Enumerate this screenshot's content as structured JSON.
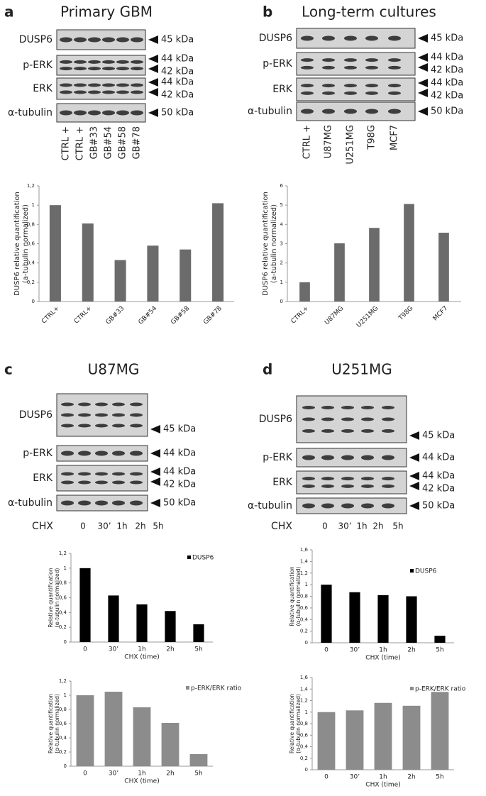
{
  "panels": [
    {
      "letter": "a",
      "title": "Primary GBM",
      "blots": [
        {
          "name": "DUSP6",
          "markers": [
            "45 kDa"
          ]
        },
        {
          "name": "p-ERK",
          "markers": [
            "44 kDa",
            "42 kDa"
          ]
        },
        {
          "name": "ERK",
          "markers": [
            "44 kDa",
            "42 kDa"
          ]
        },
        {
          "name": "α-tubulin",
          "markers": [
            "50 kDa"
          ]
        }
      ],
      "lanes": [
        "CTRL +",
        "CTRL +",
        "GB#33",
        "GB#54",
        "GB#58",
        "GB#78"
      ]
    },
    {
      "letter": "b",
      "title": "Long-term cultures",
      "blots": [
        {
          "name": "DUSP6",
          "markers": [
            "45 kDa"
          ]
        },
        {
          "name": "p-ERK",
          "markers": [
            "44 kDa",
            "42 kDa"
          ]
        },
        {
          "name": "ERK",
          "markers": [
            "44 kDa",
            "42 kDa"
          ]
        },
        {
          "name": "α-tubulin",
          "markers": [
            "50 kDa"
          ]
        }
      ],
      "lanes": [
        "CTRL +",
        "U87MG",
        "U251MG",
        "T98G",
        "MCF7"
      ]
    },
    {
      "letter": "c",
      "title": "U87MG",
      "blots": [
        {
          "name": "DUSP6",
          "markers": [
            "45 kDa"
          ]
        },
        {
          "name": "p-ERK",
          "markers": [
            "44 kDa"
          ]
        },
        {
          "name": "ERK",
          "markers": [
            "44 kDa",
            "42 kDa"
          ]
        },
        {
          "name": "α-tubulin",
          "markers": [
            "50 kDa"
          ]
        }
      ],
      "treatment": "CHX",
      "lanes": [
        "0",
        "30’",
        "1h",
        "2h",
        "5h"
      ]
    },
    {
      "letter": "d",
      "title": "U251MG",
      "blots": [
        {
          "name": "DUSP6",
          "markers": [
            "45 kDa"
          ]
        },
        {
          "name": "p-ERK",
          "markers": [
            "44 kDa"
          ]
        },
        {
          "name": "ERK",
          "markers": [
            "44 kDa",
            "42 kDa"
          ]
        },
        {
          "name": "α-tubulin",
          "markers": [
            "50 kDa"
          ]
        }
      ],
      "treatment": "CHX",
      "lanes": [
        "0",
        "30’",
        "1h",
        "2h",
        "5h"
      ]
    }
  ],
  "chart_data": [
    {
      "type": "bar",
      "y_label": [
        "DUSP6 relative quantification",
        "(a-tubulin normalized)"
      ],
      "categories": [
        "CTRL+",
        "CTRL+",
        "GB#33",
        "GB#54",
        "GB#58",
        "GB#78"
      ],
      "values": [
        1,
        0.81,
        0.43,
        0.58,
        0.54,
        1.02
      ],
      "color": "#6b6b6b",
      "ylim": [
        0,
        1.2
      ],
      "yticks": [
        0,
        {
          "value": 0.2,
          "label": "0,2"
        },
        {
          "value": 0.4,
          "label": "0,4"
        },
        {
          "value": 0.6,
          "label": "0,6"
        },
        {
          "value": 0.8,
          "label": "0,8"
        },
        1,
        {
          "value": 1.2,
          "label": "1,2"
        }
      ],
      "grid": false
    },
    {
      "type": "bar",
      "y_label": [
        "DUSP6 relative quantification",
        "(a-tubulin normalized)"
      ],
      "categories": [
        "CTRL+",
        "U87MG",
        "U251MG",
        "T98G",
        "MCF7"
      ],
      "values": [
        1,
        3.02,
        3.82,
        5.06,
        3.57
      ],
      "color": "#6b6b6b",
      "ylim": [
        0,
        6
      ],
      "yticks": [
        0,
        1,
        2,
        3,
        4,
        5,
        6
      ],
      "grid": false
    },
    {
      "type": "bar",
      "y_label": [
        "Relative quantification",
        "(α-tubulin normalized)"
      ],
      "x_label": "CHX (time)",
      "categories": [
        "0",
        "30’",
        "1h",
        "2h",
        "5h"
      ],
      "series": [
        {
          "name": "DUSP6",
          "color": "#000000",
          "values": [
            1,
            0.63,
            0.51,
            0.42,
            0.24
          ]
        }
      ],
      "ylim": [
        0,
        1.2
      ],
      "yticks": [
        0,
        {
          "value": 0.2,
          "label": "0,2"
        },
        {
          "value": 0.4,
          "label": "0,4"
        },
        {
          "value": 0.6,
          "label": "0,6"
        },
        {
          "value": 0.8,
          "label": "0,8"
        },
        1,
        {
          "value": 1.2,
          "label": "1,2"
        }
      ],
      "grid": false
    },
    {
      "type": "bar",
      "y_label": [
        "Relative quantification",
        "(α-tubulin normalized)"
      ],
      "x_label": "CHX (time)",
      "categories": [
        "0",
        "30’",
        "1h",
        "2h",
        "5h"
      ],
      "series": [
        {
          "name": "p-ERK/ERK ratio",
          "color": "#8c8c8c",
          "values": [
            1,
            1.05,
            0.83,
            0.61,
            0.17
          ]
        }
      ],
      "ylim": [
        0,
        1.2
      ],
      "yticks": [
        0,
        {
          "value": 0.2,
          "label": "0,2"
        },
        {
          "value": 0.4,
          "label": "0,4"
        },
        {
          "value": 0.6,
          "label": "0,6"
        },
        {
          "value": 0.8,
          "label": "0,8"
        },
        1,
        {
          "value": 1.2,
          "label": "1,2"
        }
      ],
      "grid": false
    },
    {
      "type": "bar",
      "y_label": [
        "Relative quantification",
        "(α-tubulin normalized)"
      ],
      "x_label": "CHX (time)",
      "categories": [
        "0",
        "30’",
        "1h",
        "2h",
        "5h"
      ],
      "series": [
        {
          "name": "DUSP6",
          "color": "#000000",
          "values": [
            1,
            0.87,
            0.82,
            0.8,
            0.12
          ]
        }
      ],
      "ylim": [
        0,
        1.6
      ],
      "yticks": [
        0,
        {
          "value": 0.2,
          "label": "0,2"
        },
        {
          "value": 0.4,
          "label": "0,4"
        },
        {
          "value": 0.6,
          "label": "0,6"
        },
        {
          "value": 0.8,
          "label": "0,8"
        },
        1,
        {
          "value": 1.2,
          "label": "1,2"
        },
        {
          "value": 1.4,
          "label": "1,4"
        },
        {
          "value": 1.6,
          "label": "1,6"
        }
      ],
      "grid": false
    },
    {
      "type": "bar",
      "y_label": [
        "Relative quantification",
        "(α-tubulin normalized)"
      ],
      "x_label": "CHX (time)",
      "categories": [
        "0",
        "30’",
        "1h",
        "2h",
        "5h"
      ],
      "series": [
        {
          "name": "p-ERK/ERK ratio",
          "color": "#8c8c8c",
          "values": [
            1,
            1.03,
            1.16,
            1.11,
            1.35
          ]
        }
      ],
      "ylim": [
        0,
        1.6
      ],
      "yticks": [
        0,
        {
          "value": 0.2,
          "label": "0,2"
        },
        {
          "value": 0.4,
          "label": "0,4"
        },
        {
          "value": 0.6,
          "label": "0,6"
        },
        {
          "value": 0.8,
          "label": "0,8"
        },
        1,
        {
          "value": 1.2,
          "label": "1,2"
        },
        {
          "value": 1.4,
          "label": "1,4"
        },
        {
          "value": 1.6,
          "label": "1,6"
        }
      ],
      "grid": false
    }
  ]
}
